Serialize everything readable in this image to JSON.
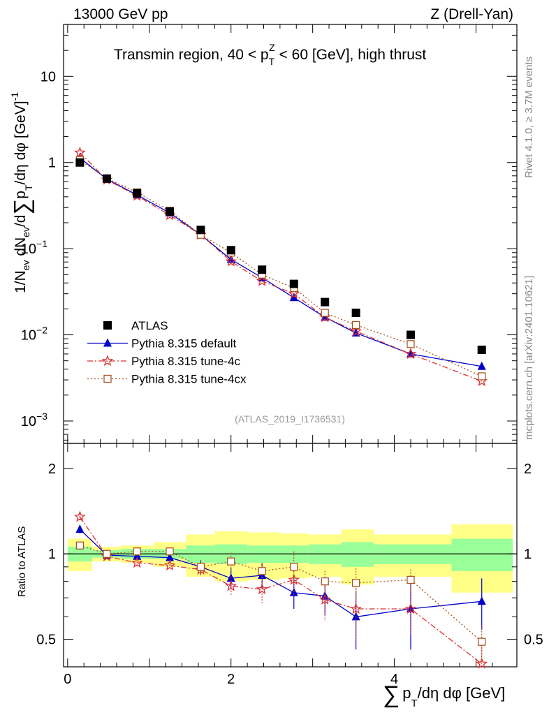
{
  "header": {
    "left": "13000 GeV pp",
    "right": "Z (Drell-Yan)"
  },
  "title_parts": {
    "pre": "Transmin region, 40 < p",
    "sub": "T",
    "sup": "Z",
    "post": " < 60 [GeV], high thrust"
  },
  "side_labels": {
    "rivet": "Rivet 4.1.0, ≥ 3.7M events",
    "mcplots": "mcplots.cern.ch [arXiv:2401.10621]"
  },
  "watermark": "(ATLAS_2019_I1736531)",
  "y_axis_main": {
    "prefix": "1/N",
    "sub_ev": "ev",
    "mid": " dN",
    "sub_ev2": "ev",
    "rest": "/d",
    "sigma": "∑",
    "p": "p",
    "sub_t": "T",
    "end": "/dη dφ",
    "unit": "[GeV]",
    "unit_exp": "-1"
  },
  "y_axis_ratio": "Ratio to ATLAS",
  "x_axis": {
    "sigma": "∑",
    "p": "p",
    "sub_t": "T",
    "rest": "/dη dφ [GeV]"
  },
  "ticks_main": [
    {
      "value": 10,
      "label": "10",
      "exp": ""
    },
    {
      "value": 1,
      "label": "1",
      "exp": ""
    },
    {
      "value": 0.1,
      "label": "10",
      "exp": "−1"
    },
    {
      "value": 0.01,
      "label": "10",
      "exp": "−2"
    },
    {
      "value": 0.001,
      "label": "10",
      "exp": "−3"
    }
  ],
  "ticks_ratio": [
    "0.5",
    "1",
    "2"
  ],
  "ticks_x": [
    "0",
    "2",
    "4"
  ],
  "legend": [
    {
      "key": "atlas",
      "label": "ATLAS"
    },
    {
      "key": "default",
      "label": "Pythia 8.315 default"
    },
    {
      "key": "tune4c",
      "label": "Pythia 8.315 tune-4c"
    },
    {
      "key": "tune4cx",
      "label": "Pythia 8.315 tune-4cx"
    }
  ],
  "colors": {
    "atlas": "#000000",
    "default": "#0000cc",
    "tune4c": "#dd3333",
    "tune4cx": "#aa5522",
    "band_inner": "#99ff99",
    "band_outer": "#ffff88"
  },
  "chart_data": {
    "type": "scatter",
    "xlim": [
      -0.05,
      5.5
    ],
    "ylim_main": [
      0.00055,
      40
    ],
    "ylim_ratio": [
      0.4,
      2.45
    ],
    "x_edges": [
      0,
      0.3,
      0.65,
      1.05,
      1.45,
      1.8,
      2.2,
      2.6,
      2.95,
      3.35,
      3.75,
      4.7,
      5.45
    ],
    "x": [
      0.15,
      0.48,
      0.85,
      1.25,
      1.63,
      2.0,
      2.38,
      2.77,
      3.15,
      3.53,
      4.2,
      5.07
    ],
    "atlas": [
      1.0,
      0.65,
      0.44,
      0.27,
      0.165,
      0.096,
      0.057,
      0.039,
      0.024,
      0.018,
      0.01,
      0.0067
    ],
    "band_inner": [
      0.06,
      0.03,
      0.04,
      0.04,
      0.07,
      0.08,
      0.07,
      0.07,
      0.08,
      0.1,
      0.08,
      0.13
    ],
    "band_outer": [
      0.13,
      0.06,
      0.07,
      0.1,
      0.17,
      0.2,
      0.19,
      0.18,
      0.17,
      0.22,
      0.17,
      0.27
    ],
    "series": [
      {
        "key": "default",
        "name": "Pythia 8.315 default",
        "marker": "triangle",
        "dash": "",
        "values": [
          1.13,
          0.64,
          0.42,
          0.26,
          0.145,
          0.075,
          0.046,
          0.027,
          0.016,
          0.0105,
          0.006,
          0.0043
        ],
        "ratio": [
          1.22,
          0.99,
          0.98,
          0.97,
          0.9,
          0.82,
          0.84,
          0.73,
          0.71,
          0.6,
          0.64,
          0.68
        ],
        "rerr": [
          0.04,
          0.02,
          0.03,
          0.03,
          0.05,
          0.07,
          0.09,
          0.09,
          0.1,
          0.14,
          0.18,
          0.14
        ]
      },
      {
        "key": "tune4c",
        "name": "Pythia 8.315 tune-4c",
        "marker": "star",
        "dash": "8,3,2,3",
        "values": [
          1.3,
          0.63,
          0.41,
          0.245,
          0.145,
          0.071,
          0.042,
          0.03,
          0.016,
          0.011,
          0.006,
          0.0029
        ],
        "ratio": [
          1.35,
          0.98,
          0.93,
          0.91,
          0.88,
          0.77,
          0.75,
          0.81,
          0.69,
          0.64,
          0.64,
          0.41
        ],
        "rerr": [
          0.04,
          0.02,
          0.03,
          0.03,
          0.05,
          0.06,
          0.08,
          0.1,
          0.11,
          0.15,
          0.12,
          0.06
        ]
      },
      {
        "key": "tune4cx",
        "name": "Pythia 8.315 tune-4cx",
        "marker": "square",
        "dash": "2,3",
        "values": [
          1.07,
          0.65,
          0.45,
          0.275,
          0.145,
          0.09,
          0.05,
          0.035,
          0.018,
          0.013,
          0.0078,
          0.0033
        ],
        "ratio": [
          1.07,
          1.0,
          1.02,
          1.02,
          0.9,
          0.94,
          0.87,
          0.9,
          0.8,
          0.79,
          0.81,
          0.49
        ],
        "rerr": [
          0.03,
          0.02,
          0.02,
          0.03,
          0.05,
          0.07,
          0.06,
          0.12,
          0.07,
          0.1,
          0.07,
          0.07
        ]
      }
    ]
  }
}
